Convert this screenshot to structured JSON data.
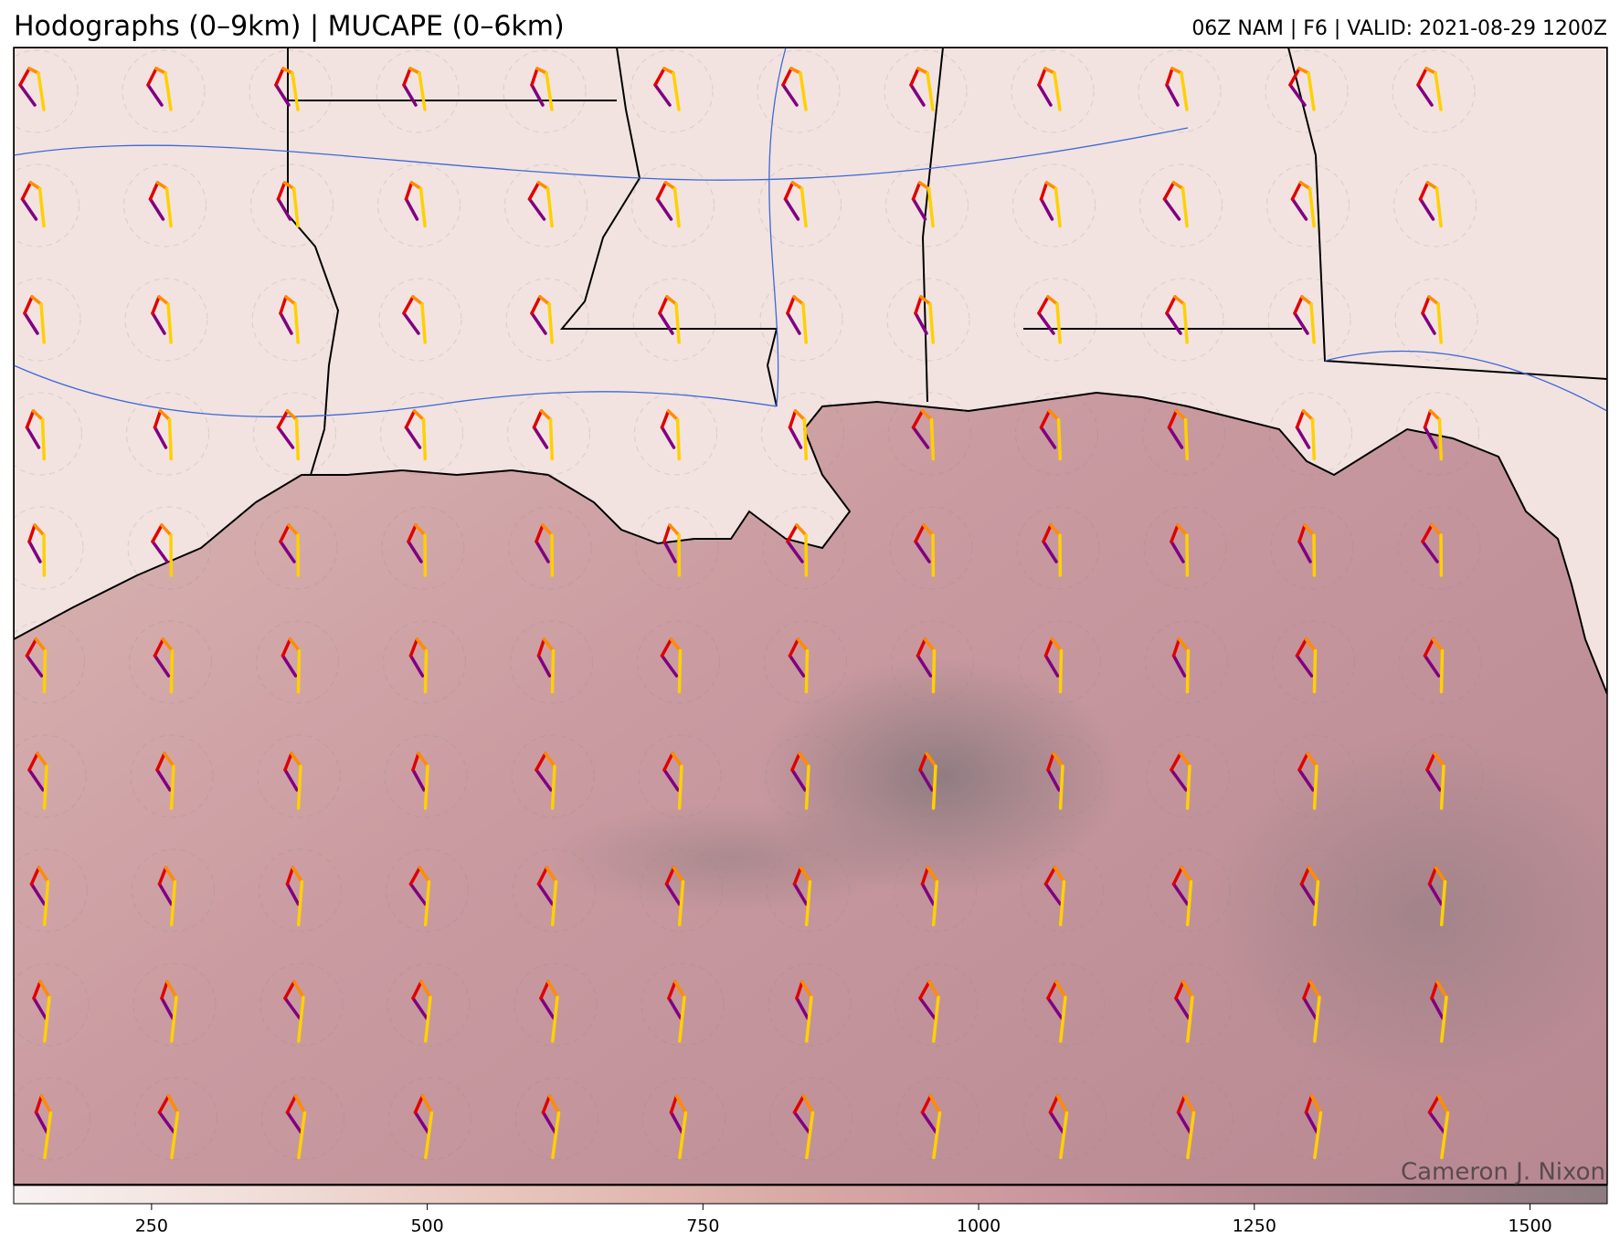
{
  "header": {
    "title": "Hodographs (0–9km) | MUCAPE (0–6km)",
    "subtitle": "06Z NAM | F6 | VALID: 2021-08-29 1200Z"
  },
  "credit": "Cameron J. Nixon",
  "colorbar": {
    "lim": [
      125,
      1570
    ],
    "ticks": [
      250,
      500,
      750,
      1000,
      1250,
      1500
    ],
    "colors": [
      "#f8f2f1",
      "#f0dcd7",
      "#e6c2b8",
      "#d8a8a4",
      "#c8949e",
      "#b0868f",
      "#8c7c80"
    ]
  }
}
